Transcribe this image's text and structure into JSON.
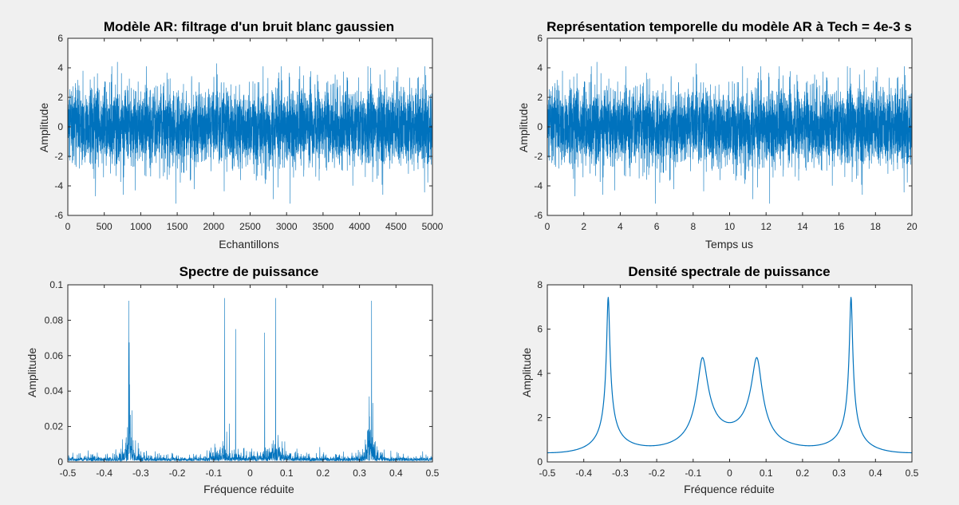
{
  "line_color": "#0072bd",
  "chart_data": [
    {
      "id": "ar-noise",
      "type": "line",
      "title": "Modèle AR: filtrage d'un bruit blanc gaussien",
      "xlabel": "Echantillons",
      "ylabel": "Amplitude",
      "xlim": [
        0,
        5000
      ],
      "ylim": [
        -6,
        6
      ],
      "xticks": [
        0,
        500,
        1000,
        1500,
        2000,
        2500,
        3000,
        3500,
        4000,
        4500,
        5000
      ],
      "yticks": [
        -6,
        -4,
        -2,
        0,
        2,
        4,
        6
      ],
      "xtick_labels": [
        "0",
        "500",
        "1000",
        "1500",
        "2000",
        "2500",
        "3000",
        "3500",
        "4000",
        "4500",
        "5000"
      ],
      "ytick_labels": [
        "-6",
        "-4",
        "-2",
        "0",
        "2",
        "4",
        "6"
      ],
      "grid": false,
      "series": [
        {
          "kind": "noise",
          "n": 5000,
          "std": 1.3,
          "extremes": [
            {
              "x": 1480,
              "y": -5.2
            },
            {
              "x": 3050,
              "y": -5.2
            },
            {
              "x": 2820,
              "y": -4.9
            },
            {
              "x": 380,
              "y": -4.7
            },
            {
              "x": 760,
              "y": -4.6
            },
            {
              "x": 4320,
              "y": -4.6
            },
            {
              "x": 680,
              "y": 4.4
            },
            {
              "x": 2040,
              "y": 4.3
            },
            {
              "x": 4150,
              "y": 4.0
            }
          ]
        }
      ]
    },
    {
      "id": "ar-time",
      "type": "line",
      "title": "Représentation temporelle du modèle AR à Tech = 4e-3 s",
      "xlabel": "Temps us",
      "ylabel": "Amplitude",
      "xlim": [
        0,
        20
      ],
      "ylim": [
        -6,
        6
      ],
      "xticks": [
        0,
        2,
        4,
        6,
        8,
        10,
        12,
        14,
        16,
        18,
        20
      ],
      "yticks": [
        -6,
        -4,
        -2,
        0,
        2,
        4,
        6
      ],
      "xtick_labels": [
        "0",
        "2",
        "4",
        "6",
        "8",
        "10",
        "12",
        "14",
        "16",
        "18",
        "20"
      ],
      "ytick_labels": [
        "-6",
        "-4",
        "-2",
        "0",
        "2",
        "4",
        "6"
      ],
      "grid": false,
      "series": [
        {
          "kind": "noise",
          "n": 5000,
          "std": 1.3,
          "extremes": [
            {
              "x": 5.92,
              "y": -5.2
            },
            {
              "x": 12.2,
              "y": -5.2
            },
            {
              "x": 11.28,
              "y": -4.9
            },
            {
              "x": 1.52,
              "y": -4.7
            },
            {
              "x": 3.04,
              "y": -4.6
            },
            {
              "x": 17.28,
              "y": -4.6
            },
            {
              "x": 2.72,
              "y": 4.4
            },
            {
              "x": 8.16,
              "y": 4.3
            },
            {
              "x": 16.6,
              "y": 4.0
            }
          ]
        }
      ]
    },
    {
      "id": "power-spectrum",
      "type": "line",
      "title": "Spectre de puissance",
      "xlabel": "Fréquence réduite",
      "ylabel": "Amplitude",
      "xlim": [
        -0.5,
        0.5
      ],
      "ylim": [
        0,
        0.1
      ],
      "xticks": [
        -0.5,
        -0.4,
        -0.3,
        -0.2,
        -0.1,
        0,
        0.1,
        0.2,
        0.3,
        0.4,
        0.5
      ],
      "yticks": [
        0,
        0.02,
        0.04,
        0.06,
        0.08,
        0.1
      ],
      "xtick_labels": [
        "-0.5",
        "-0.4",
        "-0.3",
        "-0.2",
        "-0.1",
        "0",
        "0.1",
        "0.2",
        "0.3",
        "0.4",
        "0.5"
      ],
      "ytick_labels": [
        "0",
        "0.02",
        "0.04",
        "0.06",
        "0.08",
        "0.1"
      ],
      "grid": false,
      "series": [
        {
          "kind": "periodogram",
          "n": 2500,
          "envelope_scale": 0.00185,
          "spikes": [
            {
              "x": -0.333,
              "y": 0.091
            },
            {
              "x": 0.333,
              "y": 0.091
            },
            {
              "x": -0.07,
              "y": 0.0925
            },
            {
              "x": 0.07,
              "y": 0.0925
            },
            {
              "x": -0.04,
              "y": 0.075
            },
            {
              "x": 0.04,
              "y": 0.073
            }
          ]
        }
      ]
    },
    {
      "id": "psd",
      "type": "line",
      "title": "Densité spectrale de puissance",
      "xlabel": "Fréquence réduite",
      "ylabel": "Amplitude",
      "xlim": [
        -0.5,
        0.5
      ],
      "ylim": [
        0,
        8
      ],
      "xticks": [
        -0.5,
        -0.4,
        -0.3,
        -0.2,
        -0.1,
        0,
        0.1,
        0.2,
        0.3,
        0.4,
        0.5
      ],
      "yticks": [
        0,
        2,
        4,
        6,
        8
      ],
      "xtick_labels": [
        "-0.5",
        "-0.4",
        "-0.3",
        "-0.2",
        "-0.1",
        "0",
        "0.1",
        "0.2",
        "0.3",
        "0.4",
        "0.5"
      ],
      "ytick_labels": [
        "0",
        "2",
        "4",
        "6",
        "8"
      ],
      "grid": false,
      "series": [
        {
          "kind": "ar_psd",
          "n": 1000,
          "poles": [
            {
              "r": 0.975,
              "f": 0.333
            },
            {
              "r": 0.92,
              "f": 0.075
            }
          ],
          "peaks": [
            {
              "x": -0.333,
              "y": 7.45
            },
            {
              "x": -0.08,
              "y": 4.95
            },
            {
              "x": 0.08,
              "y": 4.95
            },
            {
              "x": 0.333,
              "y": 7.45
            }
          ],
          "points": [
            {
              "x": -0.5,
              "y": 0.13
            },
            {
              "x": -0.4,
              "y": 0.3
            },
            {
              "x": -0.2,
              "y": 0.55
            },
            {
              "x": 0,
              "y": 2.12
            },
            {
              "x": 0.2,
              "y": 0.55
            },
            {
              "x": 0.4,
              "y": 0.3
            },
            {
              "x": 0.5,
              "y": 0.13
            }
          ]
        }
      ]
    }
  ]
}
